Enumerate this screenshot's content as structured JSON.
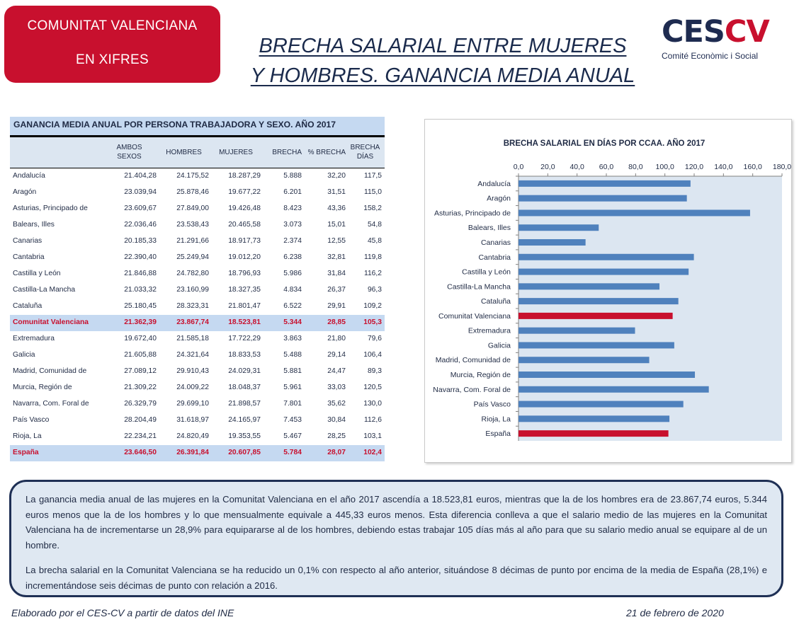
{
  "badge": {
    "line1": "COMUNITAT VALENCIANA",
    "line2": "EN XIFRES"
  },
  "title": {
    "line1": "BRECHA SALARIAL ENTRE MUJERES",
    "line2": "Y HOMBRES. GANANCIA MEDIA ANUAL"
  },
  "logo": {
    "mark_a": "CES",
    "mark_b": "CV",
    "subtitle": "Comité Econòmic i Social",
    "colors": {
      "navy": "#1e2b50",
      "red": "#c8102e"
    }
  },
  "table": {
    "title": "GANANCIA MEDIA ANUAL POR PERSONA TRABAJADORA Y SEXO. AÑO 2017",
    "headers": {
      "ambos1": "AMBOS",
      "ambos2": "SEXOS",
      "hombres": "HOMBRES",
      "mujeres": "MUJERES",
      "brecha": "BRECHA",
      "pct": "% BRECHA",
      "dias1": "BRECHA",
      "dias2": "DÍAS"
    },
    "rows": [
      [
        "Andalucía",
        "21.404,28",
        "24.175,52",
        "18.287,29",
        "5.888",
        "32,20",
        "117,5"
      ],
      [
        "Aragón",
        "23.039,94",
        "25.878,46",
        "19.677,22",
        "6.201",
        "31,51",
        "115,0"
      ],
      [
        "Asturias, Principado de",
        "23.609,67",
        "27.849,00",
        "19.426,48",
        "8.423",
        "43,36",
        "158,2"
      ],
      [
        "Balears, Illes",
        "22.036,46",
        "23.538,43",
        "20.465,58",
        "3.073",
        "15,01",
        "54,8"
      ],
      [
        "Canarias",
        "20.185,33",
        "21.291,66",
        "18.917,73",
        "2.374",
        "12,55",
        "45,8"
      ],
      [
        "Cantabria",
        "22.390,40",
        "25.249,94",
        "19.012,20",
        "6.238",
        "32,81",
        "119,8"
      ],
      [
        "Castilla y León",
        "21.846,88",
        "24.782,80",
        "18.796,93",
        "5.986",
        "31,84",
        "116,2"
      ],
      [
        "Castilla-La Mancha",
        "21.033,32",
        "23.160,99",
        "18.327,35",
        "4.834",
        "26,37",
        "96,3"
      ],
      [
        "Cataluña",
        "25.180,45",
        "28.323,31",
        "21.801,47",
        "6.522",
        "29,91",
        "109,2"
      ],
      [
        "Comunitat Valenciana",
        "21.362,39",
        "23.867,74",
        "18.523,81",
        "5.344",
        "28,85",
        "105,3"
      ],
      [
        "Extremadura",
        "19.672,40",
        "21.585,18",
        "17.722,29",
        "3.863",
        "21,80",
        "79,6"
      ],
      [
        "Galicia",
        "21.605,88",
        "24.321,64",
        "18.833,53",
        "5.488",
        "29,14",
        "106,4"
      ],
      [
        "Madrid, Comunidad de",
        "27.089,12",
        "29.910,43",
        "24.029,31",
        "5.881",
        "24,47",
        "89,3"
      ],
      [
        "Murcia, Región de",
        "21.309,22",
        "24.009,22",
        "18.048,37",
        "5.961",
        "33,03",
        "120,5"
      ],
      [
        "Navarra, Com. Foral de",
        "26.329,79",
        "29.699,10",
        "21.898,57",
        "7.801",
        "35,62",
        "130,0"
      ],
      [
        "País Vasco",
        "28.204,49",
        "31.618,97",
        "24.165,97",
        "7.453",
        "30,84",
        "112,6"
      ],
      [
        "Rioja, La",
        "22.234,21",
        "24.820,49",
        "19.353,55",
        "5.467",
        "28,25",
        "103,1"
      ],
      [
        "España",
        "23.646,50",
        "26.391,84",
        "20.607,85",
        "5.784",
        "28,07",
        "102,4"
      ]
    ],
    "highlight_rows": [
      9,
      17
    ],
    "highlight_color": "#c8102e"
  },
  "chart_data": {
    "type": "bar",
    "orientation": "horizontal",
    "title": "BRECHA SALARIAL EN DÍAS POR CCAA.  AÑO 2017",
    "categories": [
      "Andalucía",
      "Aragón",
      "Asturias, Principado de",
      "Balears, Illes",
      "Canarias",
      "Cantabria",
      "Castilla y León",
      "Castilla-La Mancha",
      "Cataluña",
      "Comunitat Valenciana",
      "Extremadura",
      "Galicia",
      "Madrid, Comunidad de",
      "Murcia, Región de",
      "Navarra, Com. Foral de",
      "País Vasco",
      "Rioja, La",
      "España"
    ],
    "values": [
      117.5,
      115.0,
      158.2,
      54.8,
      45.8,
      119.8,
      116.2,
      96.3,
      109.2,
      105.3,
      79.6,
      106.4,
      89.3,
      120.5,
      130.0,
      112.6,
      103.1,
      102.4
    ],
    "xlim": [
      0,
      180
    ],
    "xticks": [
      "0,0",
      "20,0",
      "40,0",
      "60,0",
      "80,0",
      "100,0",
      "120,0",
      "140,0",
      "160,0",
      "180,0"
    ],
    "xtick_values": [
      0,
      20,
      40,
      60,
      80,
      100,
      120,
      140,
      160,
      180
    ],
    "highlight": [
      "Comunitat Valenciana",
      "España"
    ],
    "colors": {
      "bar": "#4f81bd",
      "highlight": "#c8102e",
      "plot_bg": "#dce6f1"
    },
    "xaxis_position": "top",
    "grid": false
  },
  "summary": {
    "p1": "La ganancia media anual de las mujeres en la Comunitat Valenciana en el año 2017 ascendía a 18.523,81 euros, mientras que la de los hombres era de 23.867,74 euros, 5.344 euros menos que la de los hombres y lo que mensualmente equivale a 445,33 euros menos. Esta diferencia conlleva a que el salario medio de las mujeres en la Comunitat Valenciana ha de incrementarse un 28,9% para equipararse al de los hombres, debiendo estas trabajar 105 días más al año para que su salario medio anual se equipare al de un hombre.",
    "p2": "La brecha salarial en la Comunitat Valenciana se ha reducido un 0,1% con respecto al año anterior, situándose 8 décimas de punto por encima de la media de España (28,1%) e incrementándose seis décimas de punto con relación a 2016."
  },
  "footer": {
    "source": "Elaborado por el CES-CV a partir de datos del INE",
    "date": "21 de febrero de 2020"
  }
}
